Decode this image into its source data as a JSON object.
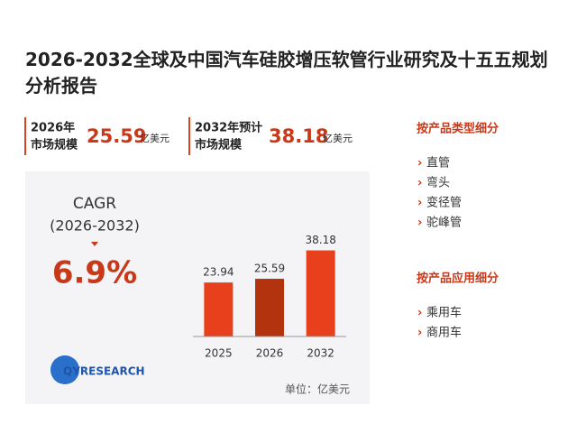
{
  "header": {
    "title": "2026-2032全球及中国汽车硅胶增压软管行业研究及十五五规划分析报告"
  },
  "stats": [
    {
      "label_line1": "2026年",
      "label_line2": "市场规模",
      "value": "25.59",
      "unit": "亿美元"
    },
    {
      "label_line1": "2032年预计",
      "label_line2": "市场规模",
      "value": "38.18",
      "unit": "亿美元"
    }
  ],
  "cagr": {
    "label": "CAGR",
    "period": "(2026-2032)",
    "value": "6.9%"
  },
  "logo": "QYRESEARCH",
  "chart_data": {
    "type": "bar",
    "categories": [
      "2025",
      "2026",
      "2032"
    ],
    "values": [
      23.94,
      25.59,
      38.18
    ],
    "value_labels": [
      "23.94",
      "25.59",
      "38.18"
    ],
    "colors": [
      "#e8401c",
      "#b3330f",
      "#e8401c"
    ],
    "ylim": [
      0,
      40
    ],
    "unit_note": "单位：亿美元"
  },
  "segments": [
    {
      "title": "按产品类型细分",
      "items": [
        "直管",
        "弯头",
        "变径管",
        "驼峰管"
      ]
    },
    {
      "title": "按产品应用细分",
      "items": [
        "乘用车",
        "商用车"
      ]
    }
  ]
}
